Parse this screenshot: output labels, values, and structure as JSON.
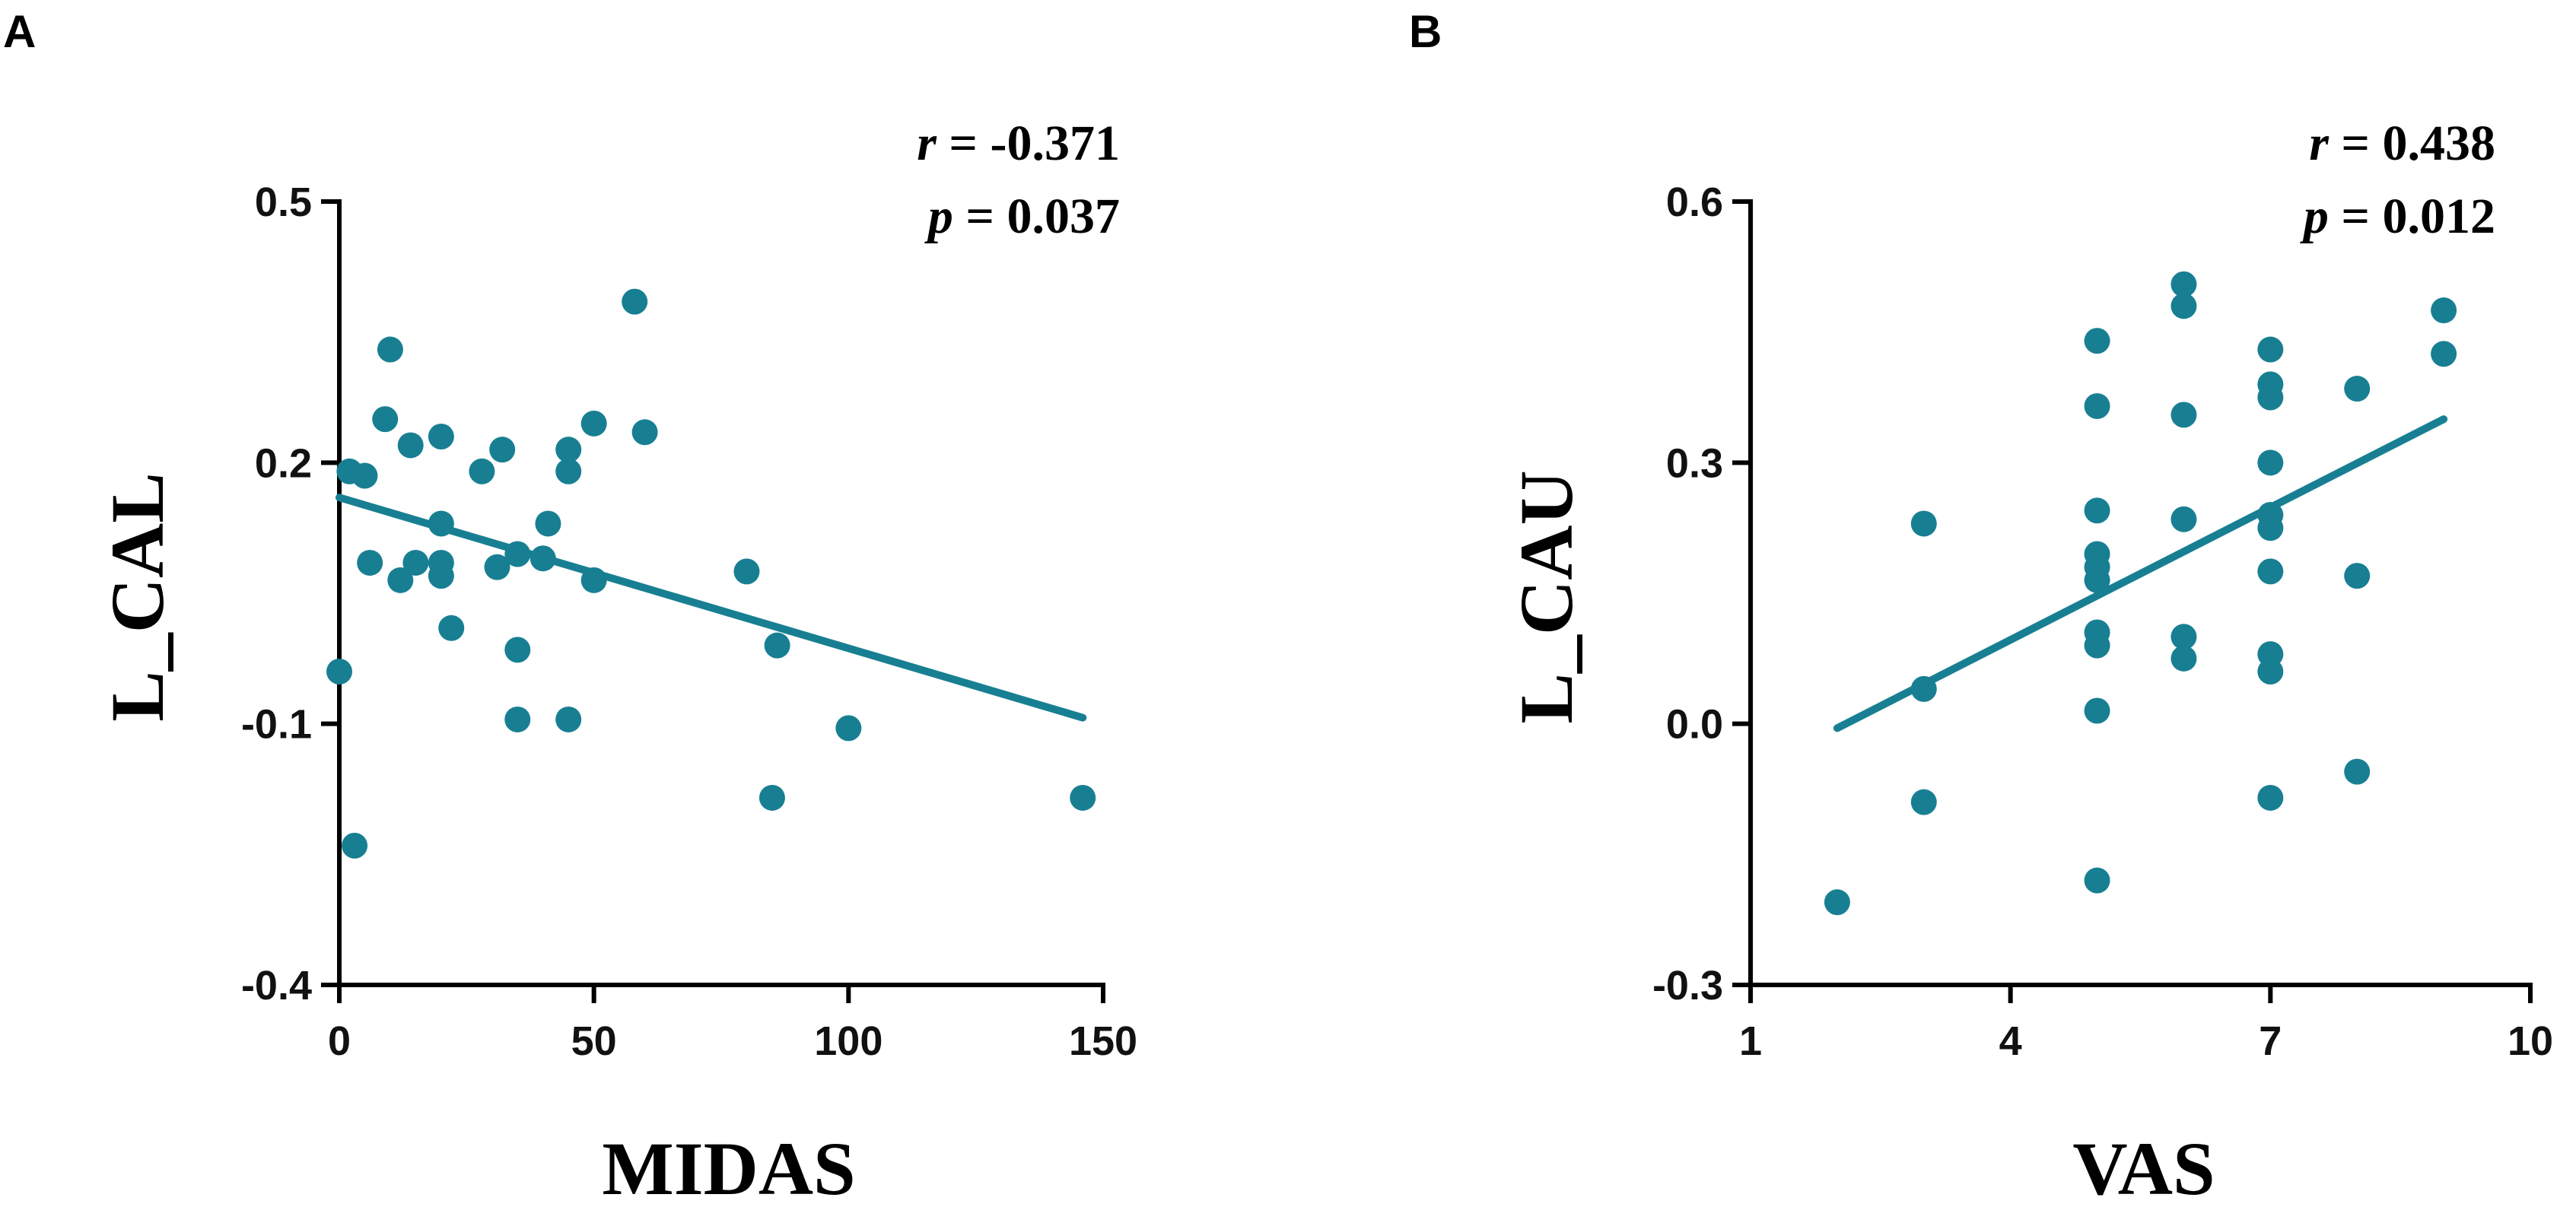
{
  "chart_data": [
    {
      "panel": "A",
      "type": "scatter",
      "xlabel": "MIDAS",
      "ylabel": "L_CAL",
      "xlim": [
        0,
        150
      ],
      "ylim": [
        -0.4,
        0.5
      ],
      "x_ticks": [
        "0",
        "50",
        "100",
        "150"
      ],
      "y_ticks": [
        "0.5",
        "0.2",
        "-0.1",
        "-0.4"
      ],
      "x_tick_values": [
        0,
        50,
        100,
        150
      ],
      "y_tick_values": [
        0.5,
        0.2,
        -0.1,
        -0.4
      ],
      "stats": {
        "r_var": "r",
        "r_text": " = -0.371",
        "p_var": "p",
        "p_text": " = 0.037"
      },
      "fit_line": {
        "x": [
          0,
          146
        ],
        "y": [
          0.16,
          -0.093
        ]
      },
      "points": [
        {
          "x": 0,
          "y": -0.04
        },
        {
          "x": 2,
          "y": 0.19
        },
        {
          "x": 3,
          "y": -0.24
        },
        {
          "x": 5,
          "y": 0.185
        },
        {
          "x": 6,
          "y": 0.085
        },
        {
          "x": 9,
          "y": 0.25
        },
        {
          "x": 10,
          "y": 0.33
        },
        {
          "x": 12,
          "y": 0.065
        },
        {
          "x": 14,
          "y": 0.22
        },
        {
          "x": 15,
          "y": 0.085
        },
        {
          "x": 20,
          "y": 0.23
        },
        {
          "x": 20,
          "y": 0.13
        },
        {
          "x": 20,
          "y": 0.085
        },
        {
          "x": 20,
          "y": 0.07
        },
        {
          "x": 22,
          "y": 0.01
        },
        {
          "x": 28,
          "y": 0.19
        },
        {
          "x": 31,
          "y": 0.08
        },
        {
          "x": 32,
          "y": 0.215
        },
        {
          "x": 35,
          "y": 0.095
        },
        {
          "x": 35,
          "y": -0.015
        },
        {
          "x": 35,
          "y": -0.095
        },
        {
          "x": 40,
          "y": 0.09
        },
        {
          "x": 41,
          "y": 0.13
        },
        {
          "x": 45,
          "y": 0.215
        },
        {
          "x": 45,
          "y": 0.19
        },
        {
          "x": 45,
          "y": -0.095
        },
        {
          "x": 50,
          "y": 0.245
        },
        {
          "x": 50,
          "y": 0.065
        },
        {
          "x": 58,
          "y": 0.385
        },
        {
          "x": 60,
          "y": 0.235
        },
        {
          "x": 80,
          "y": 0.075
        },
        {
          "x": 86,
          "y": -0.01
        },
        {
          "x": 85,
          "y": -0.185
        },
        {
          "x": 100,
          "y": -0.105
        },
        {
          "x": 146,
          "y": -0.185
        }
      ]
    },
    {
      "panel": "B",
      "type": "scatter",
      "xlabel": "VAS",
      "ylabel": "L_CAU",
      "xlim": [
        1,
        10
      ],
      "ylim": [
        -0.3,
        0.6
      ],
      "x_ticks": [
        "1",
        "4",
        "7",
        "10"
      ],
      "y_ticks": [
        "0.6",
        "0.3",
        "0.0",
        "-0.3"
      ],
      "x_tick_values": [
        1,
        4,
        7,
        10
      ],
      "y_tick_values": [
        0.6,
        0.3,
        0.0,
        -0.3
      ],
      "stats": {
        "r_var": "r",
        "r_text": " = 0.438",
        "p_var": "p",
        "p_text": " = 0.012"
      },
      "fit_line": {
        "x": [
          2,
          9
        ],
        "y": [
          -0.005,
          0.35
        ]
      },
      "points": [
        {
          "x": 2,
          "y": -0.205
        },
        {
          "x": 3,
          "y": 0.23
        },
        {
          "x": 3,
          "y": 0.04
        },
        {
          "x": 3,
          "y": -0.09
        },
        {
          "x": 5,
          "y": 0.44
        },
        {
          "x": 5,
          "y": 0.365
        },
        {
          "x": 5,
          "y": 0.245
        },
        {
          "x": 5,
          "y": 0.195
        },
        {
          "x": 5,
          "y": 0.18
        },
        {
          "x": 5,
          "y": 0.165
        },
        {
          "x": 5,
          "y": 0.105
        },
        {
          "x": 5,
          "y": 0.09
        },
        {
          "x": 5,
          "y": 0.015
        },
        {
          "x": 5,
          "y": -0.18
        },
        {
          "x": 6,
          "y": 0.505
        },
        {
          "x": 6,
          "y": 0.48
        },
        {
          "x": 6,
          "y": 0.355
        },
        {
          "x": 6,
          "y": 0.235
        },
        {
          "x": 6,
          "y": 0.1
        },
        {
          "x": 6,
          "y": 0.075
        },
        {
          "x": 7,
          "y": 0.43
        },
        {
          "x": 7,
          "y": 0.39
        },
        {
          "x": 7,
          "y": 0.375
        },
        {
          "x": 7,
          "y": 0.3
        },
        {
          "x": 7,
          "y": 0.24
        },
        {
          "x": 7,
          "y": 0.225
        },
        {
          "x": 7,
          "y": 0.175
        },
        {
          "x": 7,
          "y": 0.08
        },
        {
          "x": 7,
          "y": 0.06
        },
        {
          "x": 7,
          "y": -0.085
        },
        {
          "x": 8,
          "y": 0.385
        },
        {
          "x": 8,
          "y": 0.17
        },
        {
          "x": 8,
          "y": -0.055
        },
        {
          "x": 9,
          "y": 0.475
        },
        {
          "x": 9,
          "y": 0.425
        }
      ]
    }
  ],
  "colors": {
    "marker": "#187f93",
    "line": "#187f93",
    "axis": "#000000"
  }
}
